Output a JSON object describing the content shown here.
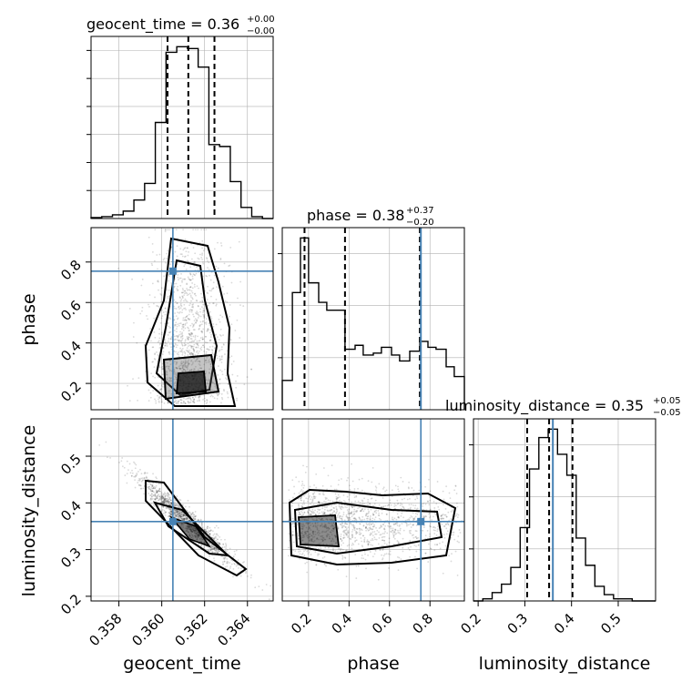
{
  "chart_data": {
    "type": "corner",
    "colors": {
      "truth": "#4682b4",
      "hist": "#000000",
      "grid": "#b0b0b0"
    },
    "parameters": [
      {
        "name": "geocent_time",
        "title_base": "geocent_time = 0.36",
        "title_plus": "+0.00",
        "title_minus": "−0.00",
        "range": [
          0.3567,
          0.3652
        ],
        "ticks": [
          "0.358",
          "0.360",
          "0.362",
          "0.364"
        ],
        "tick_values": [
          0.358,
          0.36,
          0.362,
          0.364
        ],
        "quantiles": [
          0.36027,
          0.36124,
          0.36246
        ],
        "truth": 0.36052,
        "hist_edges": [
          0.3567,
          0.3572,
          0.3577,
          0.3582,
          0.3587,
          0.3592,
          0.3597,
          0.3602,
          0.3607,
          0.3612,
          0.3617,
          0.3622,
          0.3627,
          0.3632,
          0.3637,
          0.3642,
          0.3647,
          0.3652
        ],
        "hist_counts": [
          0.5,
          1,
          2,
          4,
          10,
          19,
          52,
          90,
          93,
          92,
          82,
          40,
          39,
          20,
          6,
          1,
          0
        ]
      },
      {
        "name": "phase",
        "title_base": "phase = 0.38",
        "title_plus": "+0.37",
        "title_minus": "−0.20",
        "range": [
          0.07,
          0.97
        ],
        "ticks": [
          "0.2",
          "0.4",
          "0.6",
          "0.8"
        ],
        "tick_values": [
          0.2,
          0.4,
          0.6,
          0.8
        ],
        "quantiles": [
          0.18,
          0.38,
          0.75
        ],
        "truth": 0.755,
        "hist_edges": [
          0.07,
          0.12,
          0.16,
          0.2,
          0.25,
          0.29,
          0.34,
          0.38,
          0.43,
          0.47,
          0.52,
          0.56,
          0.61,
          0.65,
          0.7,
          0.75,
          0.79,
          0.83,
          0.88,
          0.92,
          0.97
        ],
        "hist_counts": [
          15,
          60,
          88,
          65,
          55,
          51,
          51,
          31,
          33,
          28,
          29,
          32,
          28,
          25,
          30,
          35,
          32,
          31,
          22,
          17
        ]
      },
      {
        "name": "luminosity_distance",
        "title_base": "luminosity_distance = 0.35",
        "title_plus": "+0.05",
        "title_minus": "−0.05",
        "range": [
          0.19,
          0.58
        ],
        "ticks": [
          "0.2",
          "0.3",
          "0.4",
          "0.5"
        ],
        "tick_values": [
          0.2,
          0.3,
          0.4,
          0.5
        ],
        "quantiles": [
          0.305,
          0.352,
          0.402
        ],
        "truth": 0.36,
        "hist_edges": [
          0.19,
          0.21,
          0.23,
          0.25,
          0.27,
          0.29,
          0.31,
          0.33,
          0.35,
          0.37,
          0.39,
          0.41,
          0.43,
          0.45,
          0.47,
          0.49,
          0.51,
          0.53,
          0.55,
          0.57,
          0.58
        ],
        "hist_counts": [
          0,
          1,
          4,
          8,
          16,
          35,
          63,
          78,
          82,
          70,
          60,
          30,
          17,
          7,
          3,
          1,
          1,
          0,
          0,
          0
        ]
      }
    ],
    "yticks_row1": [
      "0.2",
      "0.4",
      "0.6",
      "0.8"
    ],
    "yticks_row2": [
      "0.2",
      "0.3",
      "0.4",
      "0.5"
    ],
    "ylabel_row1": "phase",
    "ylabel_row2": "luminosity_distance"
  }
}
